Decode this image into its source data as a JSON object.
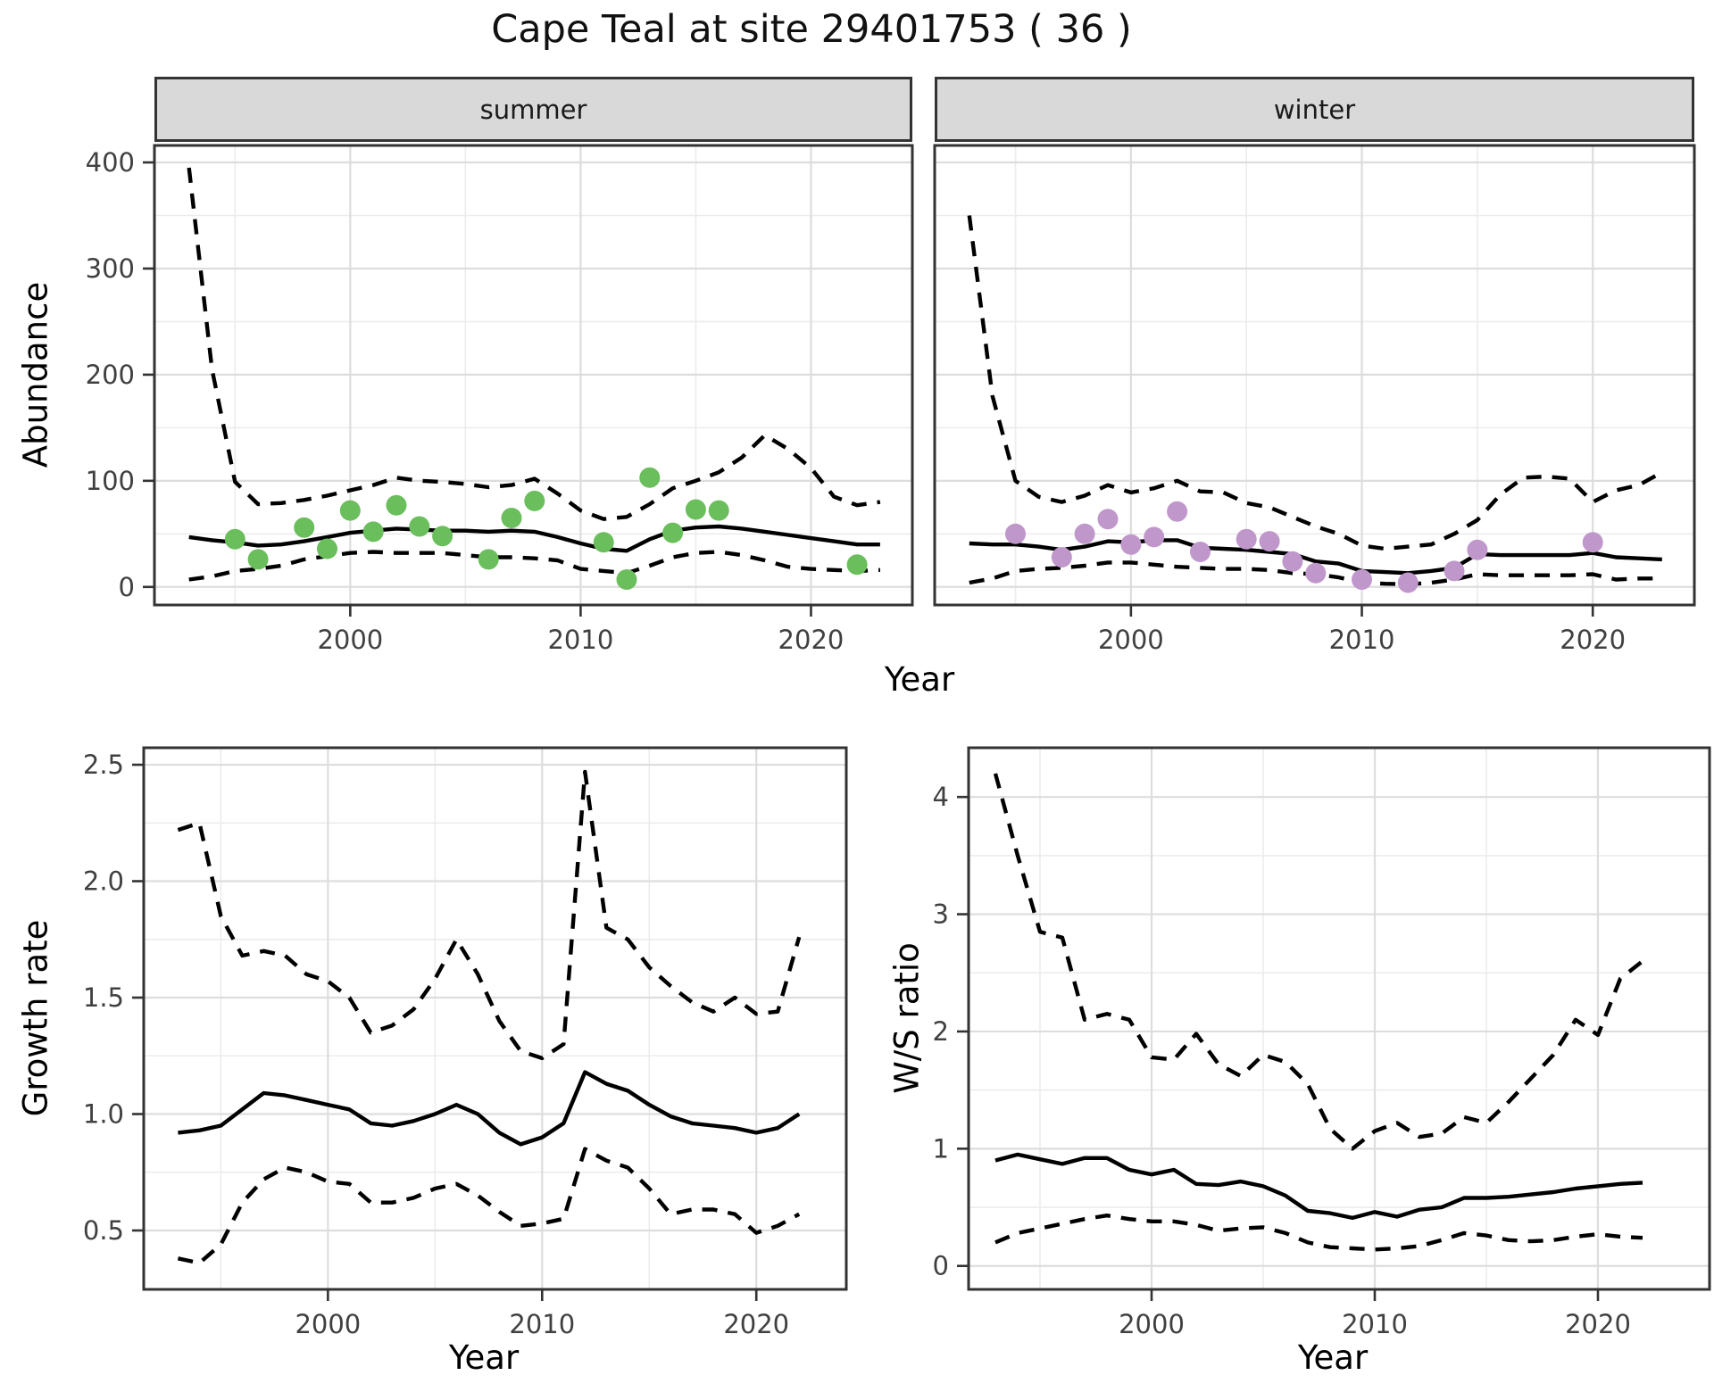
{
  "title": "Cape Teal at site 29401753 ( 36 )",
  "shared_xlabel": "Year",
  "colors": {
    "summer_point": "#6abe5b",
    "winter_point": "#bf97cb",
    "line": "#000000",
    "grid_major": "#dddddd",
    "grid_minor": "#ececec",
    "panel_border": "#333333",
    "strip_bg": "#d9d9d9",
    "tick_label": "#404040"
  },
  "chart_data": [
    {
      "name": "abundance-summer",
      "type": "line",
      "facet_label": "summer",
      "ylabel": "Abundance",
      "xlabel": "Year",
      "xlim": [
        1991.5,
        2024.4
      ],
      "ylim": [
        -17,
        416
      ],
      "xticks": [
        2000,
        2010,
        2020
      ],
      "xtick_labels": [
        "2000",
        "2010",
        "2020"
      ],
      "xminor": [
        1995,
        2005,
        2015
      ],
      "yticks": [
        0,
        100,
        200,
        300,
        400
      ],
      "ytick_labels": [
        "0",
        "100",
        "200",
        "300",
        "400"
      ],
      "yminor": [
        50,
        150,
        250,
        350
      ],
      "years": [
        1993,
        1994,
        1995,
        1996,
        1997,
        1998,
        1999,
        2000,
        2001,
        2002,
        2003,
        2004,
        2005,
        2006,
        2007,
        2008,
        2009,
        2010,
        2011,
        2012,
        2013,
        2014,
        2015,
        2016,
        2017,
        2018,
        2019,
        2020,
        2021,
        2022,
        2023
      ],
      "series": [
        {
          "name": "upper-ci",
          "style": "dashed",
          "values": [
            395,
            205,
            99,
            78,
            79,
            82,
            86,
            91,
            96,
            103,
            100,
            99,
            97,
            94,
            96,
            102,
            88,
            72,
            64,
            66,
            78,
            93,
            100,
            108,
            122,
            143,
            130,
            112,
            85,
            77,
            80
          ]
        },
        {
          "name": "fit",
          "style": "solid",
          "values": [
            47,
            44,
            42,
            39,
            40,
            43,
            47,
            51,
            53,
            55,
            54,
            53,
            53,
            52,
            53,
            52,
            47,
            41,
            36,
            34,
            45,
            53,
            56,
            57,
            55,
            52,
            49,
            46,
            43,
            40,
            40
          ]
        },
        {
          "name": "lower-ci",
          "style": "dashed",
          "values": [
            7,
            10,
            15,
            17,
            20,
            26,
            29,
            32,
            33,
            32,
            32,
            32,
            30,
            28,
            28,
            27,
            25,
            17,
            15,
            13,
            20,
            28,
            32,
            33,
            30,
            25,
            19,
            17,
            16,
            15,
            16
          ]
        }
      ],
      "points": {
        "color": "#6abe5b",
        "data": [
          [
            1995,
            45
          ],
          [
            1996,
            26
          ],
          [
            1998,
            56
          ],
          [
            1999,
            36
          ],
          [
            2000,
            72
          ],
          [
            2001,
            52
          ],
          [
            2002,
            77
          ],
          [
            2003,
            57
          ],
          [
            2004,
            48
          ],
          [
            2006,
            26
          ],
          [
            2007,
            65
          ],
          [
            2008,
            81
          ],
          [
            2011,
            42
          ],
          [
            2012,
            7
          ],
          [
            2013,
            103
          ],
          [
            2014,
            51
          ],
          [
            2015,
            73
          ],
          [
            2016,
            72
          ],
          [
            2022,
            21
          ]
        ]
      }
    },
    {
      "name": "abundance-winter",
      "type": "line",
      "facet_label": "winter",
      "ylabel": "Abundance",
      "xlabel": "Year",
      "xlim": [
        1991.5,
        2024.4
      ],
      "ylim": [
        -17,
        416
      ],
      "xticks": [
        2000,
        2010,
        2020
      ],
      "xtick_labels": [
        "2000",
        "2010",
        "2020"
      ],
      "xminor": [
        1995,
        2005,
        2015
      ],
      "yticks": [
        0,
        100,
        200,
        300,
        400
      ],
      "yminor": [
        50,
        150,
        250,
        350
      ],
      "years": [
        1993,
        1994,
        1995,
        1996,
        1997,
        1998,
        1999,
        2000,
        2001,
        2002,
        2003,
        2004,
        2005,
        2006,
        2007,
        2008,
        2009,
        2010,
        2011,
        2012,
        2013,
        2014,
        2015,
        2016,
        2017,
        2018,
        2019,
        2020,
        2021,
        2022,
        2023
      ],
      "series": [
        {
          "name": "upper-ci",
          "style": "dashed",
          "values": [
            350,
            180,
            100,
            85,
            80,
            86,
            96,
            89,
            93,
            100,
            90,
            89,
            79,
            75,
            66,
            57,
            50,
            39,
            36,
            38,
            40,
            50,
            63,
            87,
            103,
            104,
            102,
            80,
            91,
            96,
            108
          ]
        },
        {
          "name": "fit",
          "style": "solid",
          "values": [
            41,
            40,
            40,
            38,
            35,
            38,
            43,
            42,
            44,
            44,
            37,
            36,
            35,
            33,
            31,
            24,
            22,
            15,
            14,
            13,
            15,
            18,
            31,
            30,
            30,
            30,
            30,
            32,
            28,
            27,
            26
          ]
        },
        {
          "name": "lower-ci",
          "style": "dashed",
          "values": [
            4,
            8,
            15,
            17,
            18,
            20,
            23,
            23,
            21,
            19,
            18,
            17,
            17,
            16,
            13,
            12,
            9,
            4,
            3,
            2.5,
            4,
            7,
            12,
            11,
            11,
            11,
            11,
            12,
            7,
            8,
            8
          ]
        }
      ],
      "points": {
        "color": "#bf97cb",
        "data": [
          [
            1995,
            50
          ],
          [
            1997,
            28
          ],
          [
            1998,
            50
          ],
          [
            1999,
            64
          ],
          [
            2000,
            40
          ],
          [
            2001,
            47
          ],
          [
            2002,
            71
          ],
          [
            2003,
            33
          ],
          [
            2005,
            45
          ],
          [
            2006,
            43
          ],
          [
            2007,
            24
          ],
          [
            2008,
            13
          ],
          [
            2010,
            7
          ],
          [
            2012,
            4
          ],
          [
            2014,
            15
          ],
          [
            2015,
            35
          ],
          [
            2020,
            42
          ]
        ]
      }
    },
    {
      "name": "growth-rate",
      "type": "line",
      "facet_label": null,
      "ylabel": "Growth rate",
      "xlabel": "Year",
      "xlim": [
        1991.4,
        2024.2
      ],
      "ylim": [
        0.247,
        2.573
      ],
      "xticks": [
        2000,
        2010,
        2020
      ],
      "xtick_labels": [
        "2000",
        "2010",
        "2020"
      ],
      "xminor": [
        1995,
        2005,
        2015
      ],
      "yticks": [
        0.5,
        1.0,
        1.5,
        2.0,
        2.5
      ],
      "ytick_labels": [
        "0.5",
        "1.0",
        "1.5",
        "2.0",
        "2.5"
      ],
      "yminor": [
        0.75,
        1.25,
        1.75,
        2.25
      ],
      "years": [
        1993,
        1994,
        1995,
        1996,
        1997,
        1998,
        1999,
        2000,
        2001,
        2002,
        2003,
        2004,
        2005,
        2006,
        2007,
        2008,
        2009,
        2010,
        2011,
        2012,
        2013,
        2014,
        2015,
        2016,
        2017,
        2018,
        2019,
        2020,
        2021,
        2022
      ],
      "series": [
        {
          "name": "upper-ci",
          "style": "dashed",
          "values": [
            2.22,
            2.25,
            1.85,
            1.68,
            1.7,
            1.68,
            1.6,
            1.57,
            1.5,
            1.35,
            1.38,
            1.45,
            1.58,
            1.75,
            1.6,
            1.4,
            1.27,
            1.24,
            1.3,
            2.47,
            1.8,
            1.75,
            1.63,
            1.55,
            1.48,
            1.44,
            1.5,
            1.43,
            1.44,
            1.76
          ]
        },
        {
          "name": "fit",
          "style": "solid",
          "values": [
            0.92,
            0.93,
            0.95,
            1.02,
            1.09,
            1.08,
            1.06,
            1.04,
            1.02,
            0.96,
            0.95,
            0.97,
            1.0,
            1.04,
            1.0,
            0.92,
            0.87,
            0.9,
            0.96,
            1.18,
            1.13,
            1.1,
            1.04,
            0.99,
            0.96,
            0.95,
            0.94,
            0.92,
            0.94,
            1.0
          ]
        },
        {
          "name": "lower-ci",
          "style": "dashed",
          "values": [
            0.38,
            0.36,
            0.44,
            0.62,
            0.72,
            0.77,
            0.75,
            0.71,
            0.7,
            0.62,
            0.62,
            0.64,
            0.68,
            0.7,
            0.65,
            0.58,
            0.52,
            0.53,
            0.55,
            0.85,
            0.8,
            0.77,
            0.68,
            0.57,
            0.59,
            0.59,
            0.57,
            0.49,
            0.52,
            0.57
          ]
        }
      ],
      "points": null
    },
    {
      "name": "ws-ratio",
      "type": "line",
      "facet_label": null,
      "ylabel": "W/S ratio",
      "xlabel": "Year",
      "xlim": [
        1991.8,
        2025.0
      ],
      "ylim": [
        -0.2,
        4.42
      ],
      "xticks": [
        2000,
        2010,
        2020
      ],
      "xtick_labels": [
        "2000",
        "2010",
        "2020"
      ],
      "xminor": [
        1995,
        2005,
        2015
      ],
      "yticks": [
        0,
        1,
        2,
        3,
        4
      ],
      "ytick_labels": [
        "0",
        "1",
        "2",
        "3",
        "4"
      ],
      "yminor": [
        0.5,
        1.5,
        2.5,
        3.5
      ],
      "years": [
        1993,
        1994,
        1995,
        1996,
        1997,
        1998,
        1999,
        2000,
        2001,
        2002,
        2003,
        2004,
        2005,
        2006,
        2007,
        2008,
        2009,
        2010,
        2011,
        2012,
        2013,
        2014,
        2015,
        2016,
        2017,
        2018,
        2019,
        2020,
        2021,
        2022
      ],
      "series": [
        {
          "name": "upper-ci",
          "style": "dashed",
          "values": [
            4.2,
            3.5,
            2.85,
            2.8,
            2.1,
            2.15,
            2.1,
            1.78,
            1.76,
            1.98,
            1.72,
            1.62,
            1.8,
            1.74,
            1.55,
            1.17,
            1.0,
            1.15,
            1.22,
            1.1,
            1.13,
            1.27,
            1.22,
            1.4,
            1.6,
            1.8,
            2.1,
            1.97,
            2.45,
            2.6
          ]
        },
        {
          "name": "fit",
          "style": "solid",
          "values": [
            0.9,
            0.95,
            0.91,
            0.87,
            0.92,
            0.92,
            0.82,
            0.78,
            0.82,
            0.7,
            0.69,
            0.72,
            0.68,
            0.6,
            0.47,
            0.45,
            0.41,
            0.46,
            0.42,
            0.48,
            0.5,
            0.58,
            0.58,
            0.59,
            0.61,
            0.63,
            0.66,
            0.68,
            0.7,
            0.71
          ]
        },
        {
          "name": "lower-ci",
          "style": "dashed",
          "values": [
            0.2,
            0.28,
            0.32,
            0.36,
            0.4,
            0.43,
            0.4,
            0.38,
            0.38,
            0.35,
            0.3,
            0.32,
            0.33,
            0.28,
            0.2,
            0.16,
            0.15,
            0.14,
            0.15,
            0.17,
            0.22,
            0.28,
            0.26,
            0.22,
            0.21,
            0.22,
            0.25,
            0.27,
            0.25,
            0.24
          ]
        }
      ],
      "points": null
    }
  ]
}
